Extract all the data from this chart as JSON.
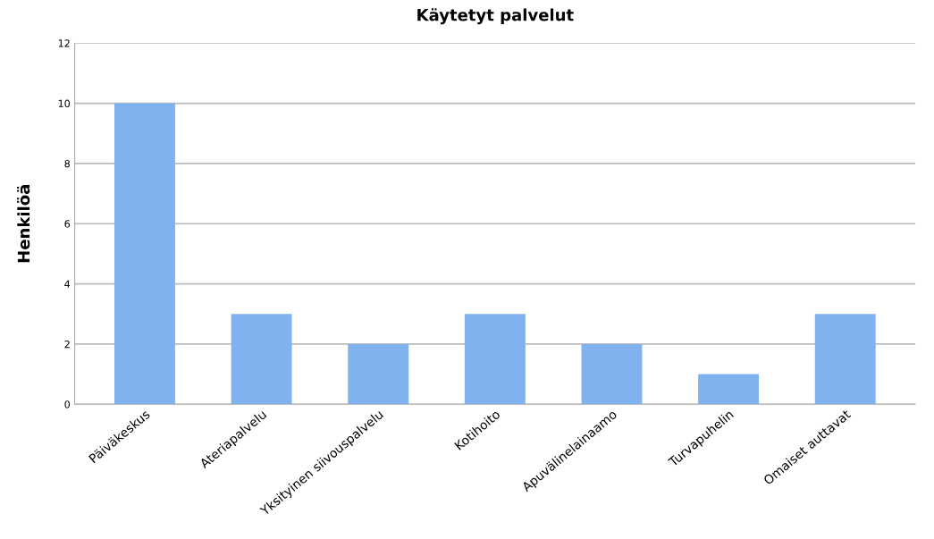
{
  "chart_data": {
    "type": "bar",
    "title": "Käytetyt palvelut",
    "ylabel": "Henkilöä",
    "categories": [
      "Päiväkeskus",
      "Ateriapalvelu",
      "Yksityinen siivouspalvelu",
      "Kotihoito",
      "Apuvälinelainaamo",
      "Turvapuhelin",
      "Omaiset auttavat"
    ],
    "values": [
      10,
      3,
      2,
      3,
      2,
      1,
      3
    ],
    "color": "#7fb2ee",
    "ylim": [
      0,
      12
    ],
    "yticks": [
      0,
      2,
      4,
      6,
      8,
      10,
      12
    ],
    "grid": "y"
  }
}
